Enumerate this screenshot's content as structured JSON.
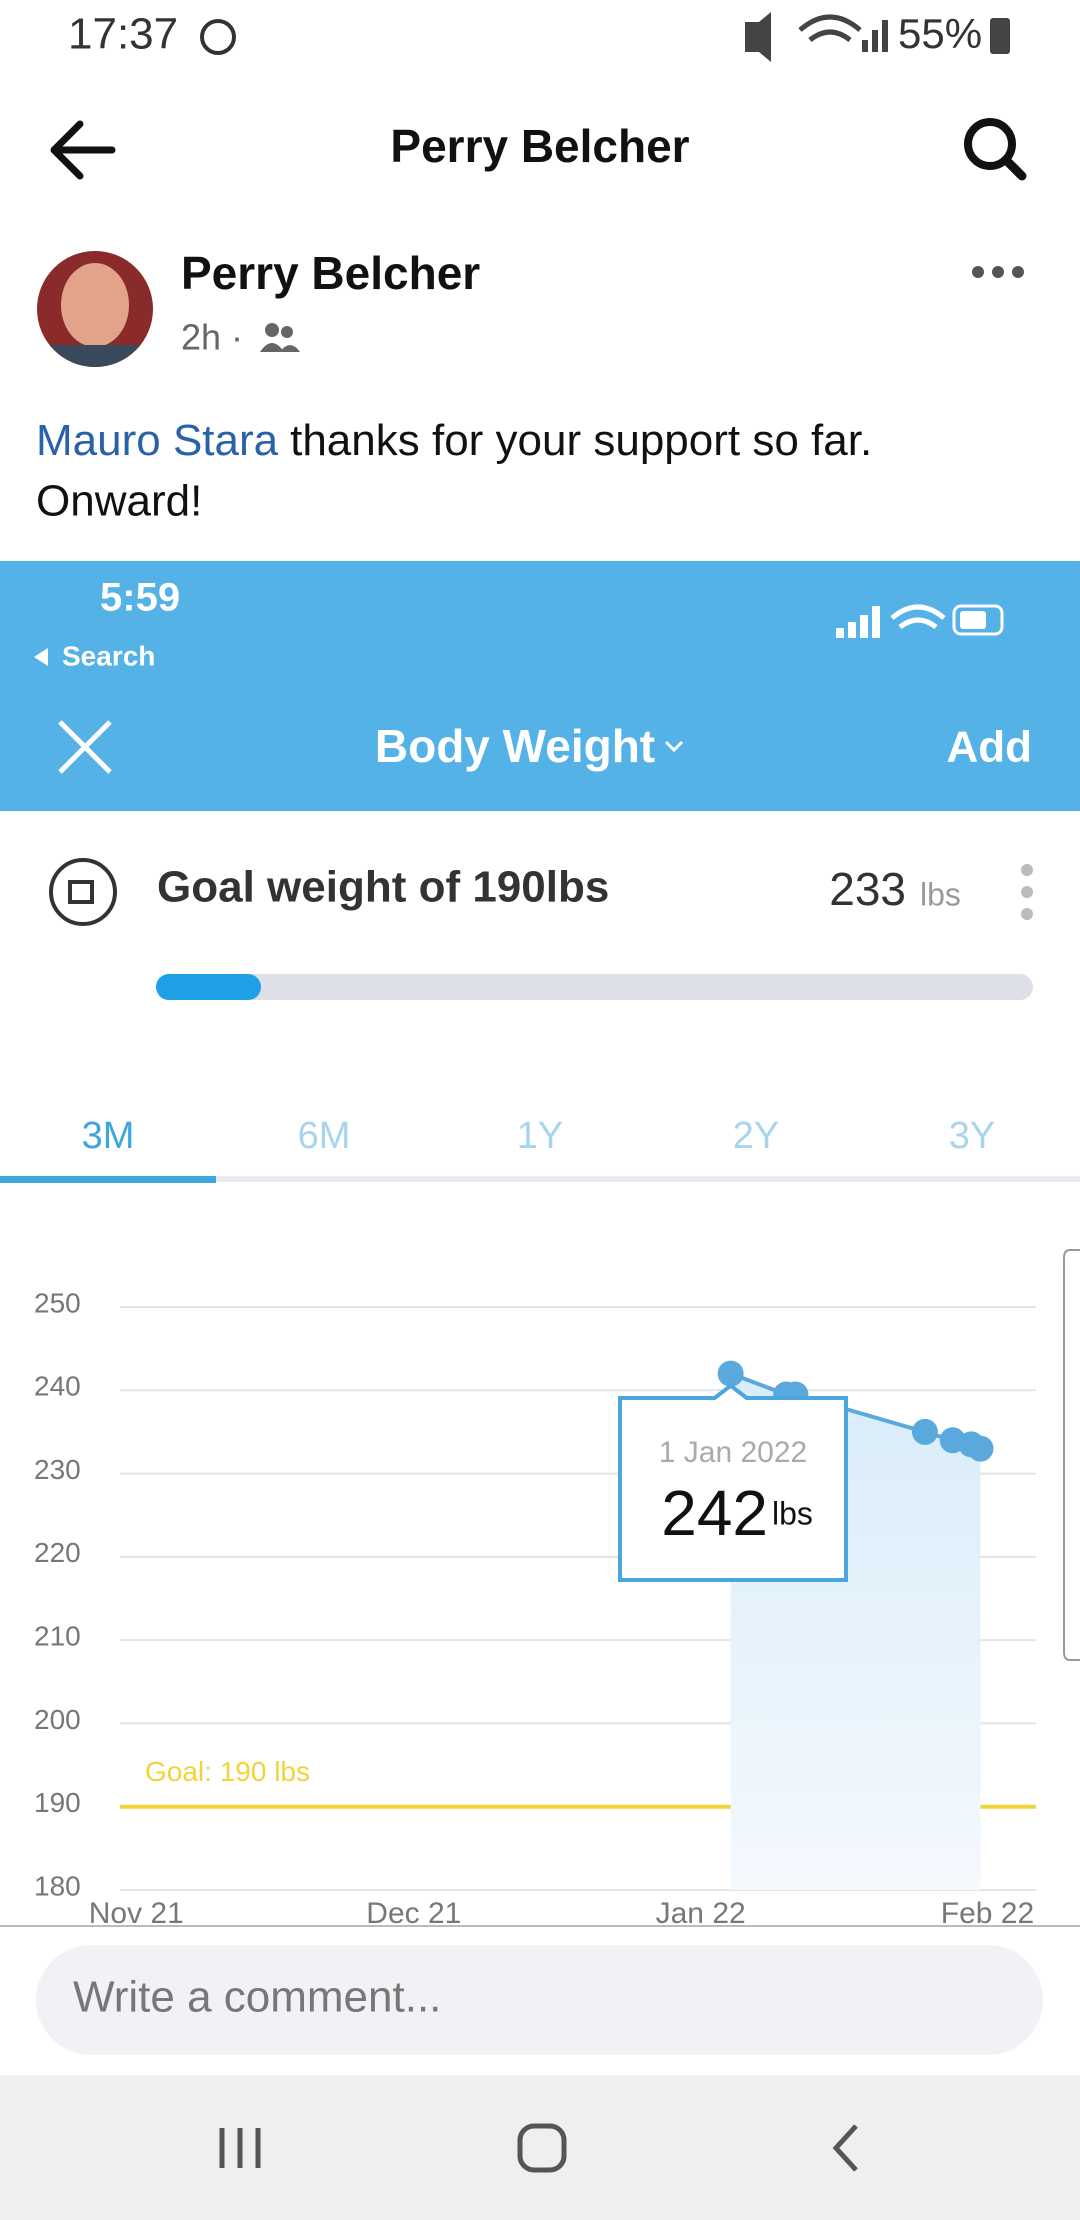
{
  "status_bar": {
    "time": "17:37",
    "battery": "55%"
  },
  "header": {
    "title": "Perry Belcher"
  },
  "post": {
    "author": "Perry Belcher",
    "age": "2h ·",
    "mention": "Mauro Stara",
    "text_line1": "thanks for your support so far.",
    "text_line2": "Onward!"
  },
  "screenshot": {
    "time": "5:59",
    "back": "Search",
    "title": "Body Weight",
    "action": "Add",
    "goal_text": "Goal weight of 190lbs",
    "current_weight": "233",
    "current_unit": "lbs",
    "tabs": [
      "3M",
      "6M",
      "1Y",
      "2Y",
      "3Y"
    ]
  },
  "chart_data": {
    "type": "line",
    "x": [
      "2022-01-01",
      "2022-01-07",
      "2022-01-08",
      "2022-01-22",
      "2022-01-25",
      "2022-01-27",
      "2022-01-28"
    ],
    "values": [
      242,
      239.5,
      239.5,
      235,
      234,
      233.5,
      233
    ],
    "color": "#5aa9dc",
    "xlim": [
      "2021-10-27",
      "2022-02-03"
    ],
    "xticks": [
      {
        "value": "2021-11-01",
        "label": "Nov 21"
      },
      {
        "value": "2021-12-01",
        "label": "Dec 21"
      },
      {
        "value": "2022-01-01",
        "label": "Jan 22"
      },
      {
        "value": "2022-02-01",
        "label": "Feb 22"
      }
    ],
    "ylim": [
      180,
      250
    ],
    "yticks": [
      180,
      190,
      200,
      210,
      220,
      230,
      240,
      250
    ],
    "grid": true,
    "goal": 190,
    "goal_label": "Goal: 190 lbs",
    "goal_color": "#f0d43a",
    "tooltip": {
      "date": "1 Jan 2022",
      "unit": "lbs"
    }
  },
  "comment_placeholder": "Write a comment..."
}
